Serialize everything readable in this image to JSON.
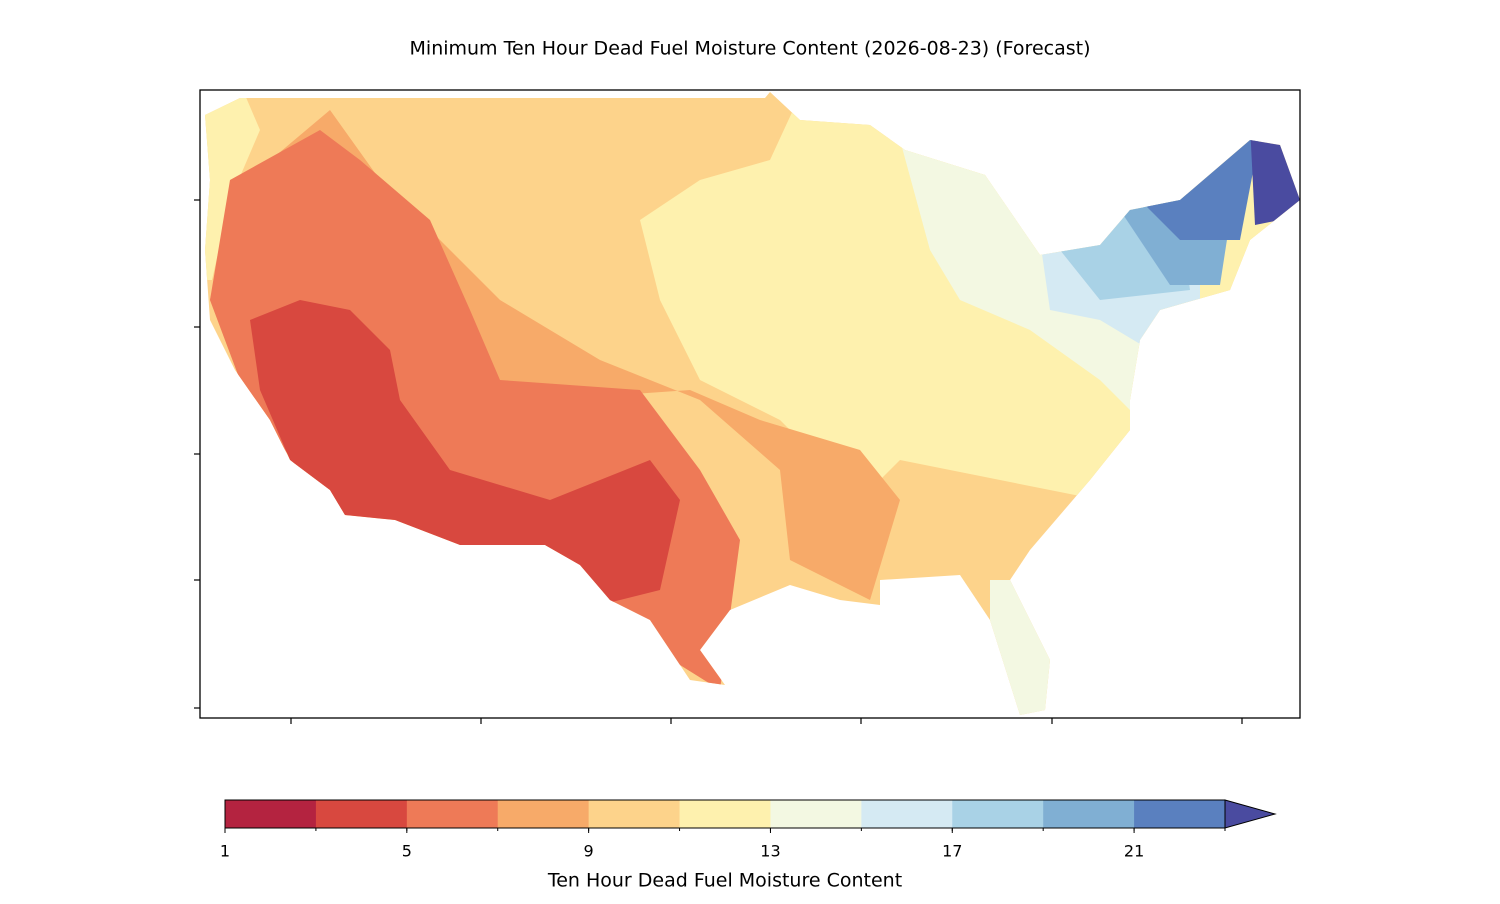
{
  "title": "Minimum Ten Hour Dead Fuel Moisture Content (2026-08-23) (Forecast)",
  "colorbar": {
    "label": "Ten Hour Dead Fuel Moisture Content",
    "levels": [
      1,
      3,
      5,
      7,
      9,
      11,
      13,
      15,
      17,
      19,
      21,
      23
    ],
    "colors": [
      "#b42340",
      "#d8483f",
      "#ee7a57",
      "#f7aa69",
      "#fdd38b",
      "#fef1ae",
      "#f3f8e2",
      "#d5eaf3",
      "#a9d2e6",
      "#80afd3",
      "#5a80bf"
    ],
    "extend_color": "#4a4ba0",
    "ticks": [
      1,
      5,
      9,
      13,
      17,
      21
    ]
  }
}
